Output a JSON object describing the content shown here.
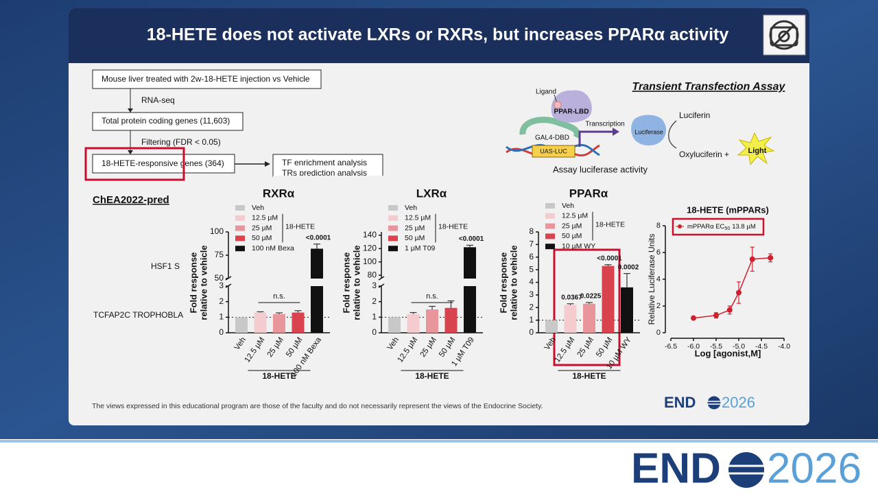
{
  "header": {
    "title": "18-HETE does not activate LXRs or RXRs, but increases PPARα activity"
  },
  "flowchart": {
    "steps": [
      "Mouse liver treated with 2w-18-HETE injection vs Vehicle",
      "Total protein coding genes (11,603)",
      "18-HETE-responsive genes (364)"
    ],
    "transitions": [
      "RNA-seq",
      "Filtering (FDR < 0.05)"
    ],
    "analyses": [
      "TF enrichment analysis",
      "TRs prediction analysis"
    ],
    "database": "ChEA2022-pred",
    "terms": [
      "HSF1 S",
      "TCFAP2C TROPHOBLA"
    ]
  },
  "assay": {
    "title": "Transient Transfection Assay",
    "ligand": "Ligand",
    "receptor": "PPAR-LBD",
    "dbd": "GAL4-DBD",
    "reporter": "UAS-LUC",
    "transcription": "Transcription",
    "enzyme": "Luciferase",
    "substrate": "Luciferin",
    "product": "Oxyluciferin +",
    "light": "Light",
    "caption": "Assay luciferase activity"
  },
  "charts": [
    {
      "type": "bar",
      "title": "RXRα",
      "ylabel": [
        "Fold response",
        "relative to vehicle"
      ],
      "categories": [
        "Veh",
        "12.5 µM",
        "25 µM",
        "50 µM",
        "100 nM Bexa"
      ],
      "colors": [
        "#c8c8c8",
        "#f4ccd0",
        "#e8959b",
        "#d9434e",
        "#111111"
      ],
      "values": [
        1,
        1.3,
        1.2,
        1.3,
        82
      ],
      "errors": [
        0,
        0.05,
        0.08,
        0.12,
        5
      ],
      "p_labels": [
        null,
        null,
        null,
        null,
        "<0.0001"
      ],
      "ns_label": "n.s.",
      "group_label": "18-HETE",
      "reference_line": 1,
      "lower": {
        "ylim": [
          0,
          3
        ],
        "yticks": [
          0,
          1,
          2,
          3
        ]
      },
      "upper": {
        "ylim": [
          50,
          100
        ],
        "yticks": [
          50,
          75,
          100
        ]
      }
    },
    {
      "type": "bar",
      "title": "LXRα",
      "ylabel": [
        "Fold response",
        "relative to vehicle"
      ],
      "categories": [
        "Veh",
        "12.5 µM",
        "25 µM",
        "50 µM",
        "1 µM T09"
      ],
      "colors": [
        "#c8c8c8",
        "#f4ccd0",
        "#e8959b",
        "#d9434e",
        "#111111"
      ],
      "values": [
        1,
        1.2,
        1.5,
        1.6,
        122
      ],
      "errors": [
        0,
        0.1,
        0.2,
        0.45,
        3
      ],
      "p_labels": [
        null,
        null,
        null,
        null,
        "<0.0001"
      ],
      "ns_label": "n.s.",
      "group_label": "18-HETE",
      "reference_line": 1,
      "lower": {
        "ylim": [
          0,
          3
        ],
        "yticks": [
          0,
          1,
          2,
          3
        ]
      },
      "upper": {
        "ylim": [
          75,
          145
        ],
        "yticks": [
          80,
          100,
          120,
          140
        ]
      }
    },
    {
      "type": "bar",
      "title": "PPARα",
      "ylabel": [
        "Fold response",
        "relative to vehicle"
      ],
      "categories": [
        "Veh",
        "12.5 µM",
        "25 µM",
        "50 µM",
        "10 µM WY"
      ],
      "colors": [
        "#c8c8c8",
        "#f4ccd0",
        "#e8959b",
        "#d9434e",
        "#111111"
      ],
      "values": [
        1,
        2.2,
        2.3,
        5.3,
        3.6
      ],
      "errors": [
        0,
        0.1,
        0.1,
        0.1,
        1.1
      ],
      "p_labels": [
        null,
        "0.0367",
        "0.0225",
        "<0.0001",
        "0.0002"
      ],
      "group_label": "18-HETE",
      "reference_line": 1,
      "ylim": [
        0,
        8
      ],
      "yticks": [
        0,
        1,
        2,
        3,
        4,
        5,
        6,
        7,
        8
      ]
    },
    {
      "type": "line",
      "title": "18-HETE (mPPARs)",
      "legend": {
        "name": "mPPARα EC",
        "subscript": "50",
        "value": "13.8 µM"
      },
      "color": "#d0202f",
      "x": [
        -6,
        -5.5,
        -5.2,
        -5,
        -4.7,
        -4.3
      ],
      "values": [
        1.1,
        1.3,
        1.7,
        3,
        5.5,
        5.6
      ],
      "errors": [
        0.1,
        0.2,
        0.3,
        0.8,
        0.9,
        0.3
      ],
      "xlim": [
        -6.5,
        -4
      ],
      "xticks": [
        -6.5,
        {
          "value": -6,
          "label": "-6.0"
        },
        -5.5,
        {
          "value": -5,
          "label": "-5.0"
        },
        -4.5,
        {
          "value": -4,
          "label": "-4.0"
        }
      ],
      "ylim": [
        0,
        8
      ],
      "yticks": [
        0,
        2,
        4,
        6,
        8
      ],
      "xlabel": "Log [agonist,M]",
      "ylabel": "Relative Luciferase Units"
    }
  ],
  "footer": {
    "disclaimer": "The views expressed in this educational program are those of the faculty and do not necessarily represent the views of the Endocrine Society.",
    "logo_word": "END",
    "logo_year": "2026"
  }
}
